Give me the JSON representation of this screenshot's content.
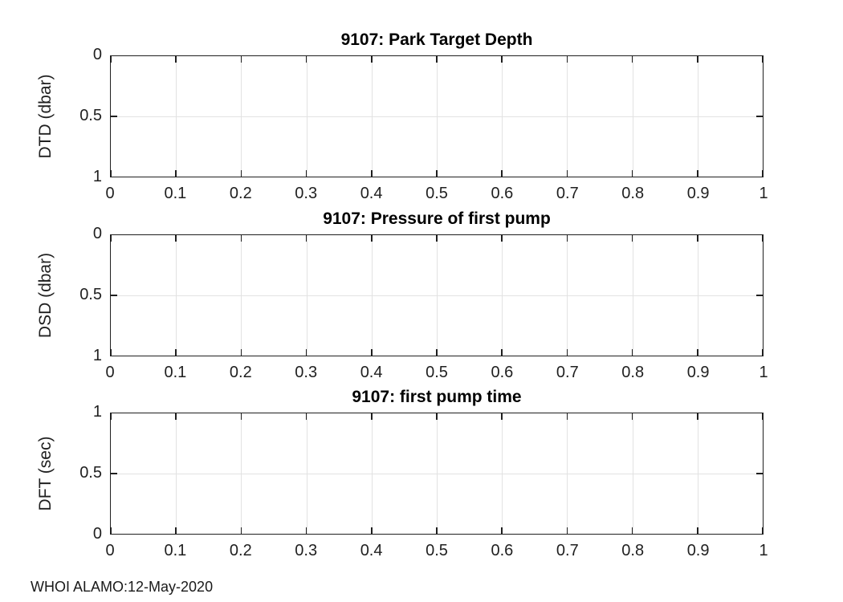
{
  "figure": {
    "footer": "WHOI ALAMO:12-May-2020",
    "background": "#ffffff"
  },
  "colors": {
    "axis": "#1f1f1f",
    "grid": "#e2e2e2",
    "title": "#000000",
    "tick_label": "#1f1f1f"
  },
  "axes_shared": {
    "xlim": [
      0,
      1
    ],
    "xticks": [
      0,
      0.1,
      0.2,
      0.3,
      0.4,
      0.5,
      0.6,
      0.7,
      0.8,
      0.9,
      1
    ],
    "xtick_labels": [
      "0",
      "0.1",
      "0.2",
      "0.3",
      "0.4",
      "0.5",
      "0.6",
      "0.7",
      "0.8",
      "0.9",
      "1"
    ],
    "ytick_fractions_top_to_bottom": [
      0,
      0.5,
      1
    ],
    "grid": true
  },
  "plots": [
    {
      "title": "9107: Park Target Depth",
      "ylabel": "DTD (dbar)",
      "ytick_labels_top_to_bottom": [
        "0",
        "0.5",
        "1"
      ],
      "ylim": [
        0,
        1
      ],
      "y_direction": "reverse"
    },
    {
      "title": "9107: Pressure of first pump",
      "ylabel": "DSD (dbar)",
      "ytick_labels_top_to_bottom": [
        "0",
        "0.5",
        "1"
      ],
      "ylim": [
        0,
        1
      ],
      "y_direction": "reverse"
    },
    {
      "title": "9107: first pump time",
      "ylabel": "DFT (sec)",
      "ytick_labels_top_to_bottom": [
        "1",
        "0.5",
        "0"
      ],
      "ylim": [
        0,
        1
      ],
      "y_direction": "normal"
    }
  ],
  "chart_data": [
    {
      "type": "line",
      "title": "9107: Park Target Depth",
      "xlabel": "",
      "ylabel": "DTD (dbar)",
      "xlim": [
        0,
        1
      ],
      "ylim": [
        0,
        1
      ],
      "y_axis_reversed": true,
      "xticks": [
        0,
        0.1,
        0.2,
        0.3,
        0.4,
        0.5,
        0.6,
        0.7,
        0.8,
        0.9,
        1
      ],
      "yticks": [
        0,
        0.5,
        1
      ],
      "grid": true,
      "legend": null,
      "series": []
    },
    {
      "type": "line",
      "title": "9107: Pressure of first pump",
      "xlabel": "",
      "ylabel": "DSD (dbar)",
      "xlim": [
        0,
        1
      ],
      "ylim": [
        0,
        1
      ],
      "y_axis_reversed": true,
      "xticks": [
        0,
        0.1,
        0.2,
        0.3,
        0.4,
        0.5,
        0.6,
        0.7,
        0.8,
        0.9,
        1
      ],
      "yticks": [
        0,
        0.5,
        1
      ],
      "grid": true,
      "legend": null,
      "series": []
    },
    {
      "type": "line",
      "title": "9107: first pump time",
      "xlabel": "",
      "ylabel": "DFT (sec)",
      "xlim": [
        0,
        1
      ],
      "ylim": [
        0,
        1
      ],
      "y_axis_reversed": false,
      "xticks": [
        0,
        0.1,
        0.2,
        0.3,
        0.4,
        0.5,
        0.6,
        0.7,
        0.8,
        0.9,
        1
      ],
      "yticks": [
        0,
        0.5,
        1
      ],
      "grid": true,
      "legend": null,
      "series": []
    }
  ]
}
